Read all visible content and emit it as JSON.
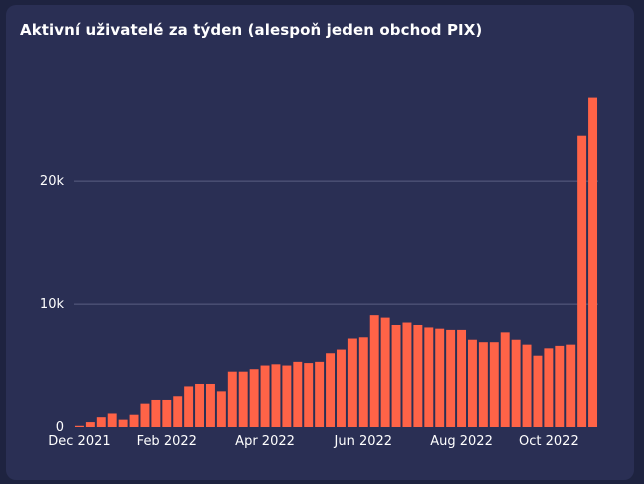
{
  "chart_data": {
    "type": "bar",
    "title": "Aktivní uživatelé za týden (alespoň jeden obchod PIX)",
    "xlabel": "",
    "ylabel": "",
    "ylim": [
      0,
      27500
    ],
    "grid": true,
    "colors": {
      "bar": "#ff6347",
      "background": "#2a2f54",
      "grid": "#5a5f82",
      "text": "#ffffff"
    },
    "y_ticks": [
      {
        "value": 0,
        "label": "0"
      },
      {
        "value": 10000,
        "label": "10k"
      },
      {
        "value": 20000,
        "label": "20k"
      }
    ],
    "x_ticks": [
      {
        "index": 0,
        "label": "Dec 2021"
      },
      {
        "index": 8,
        "label": "Feb 2022"
      },
      {
        "index": 17,
        "label": "Apr 2022"
      },
      {
        "index": 26,
        "label": "Jun 2022"
      },
      {
        "index": 35,
        "label": "Aug 2022"
      },
      {
        "index": 43,
        "label": "Oct 2022"
      }
    ],
    "values": [
      100,
      400,
      800,
      1100,
      600,
      1000,
      1900,
      2200,
      2200,
      2500,
      3300,
      3500,
      3500,
      2900,
      4500,
      4500,
      4700,
      5000,
      5100,
      5000,
      5300,
      5200,
      5300,
      6000,
      6300,
      7200,
      7300,
      9100,
      8900,
      8300,
      8500,
      8300,
      8100,
      8000,
      7900,
      7900,
      7100,
      6900,
      6900,
      7700,
      7100,
      6700,
      5800,
      6400,
      6600,
      6700,
      23700,
      26800
    ]
  }
}
